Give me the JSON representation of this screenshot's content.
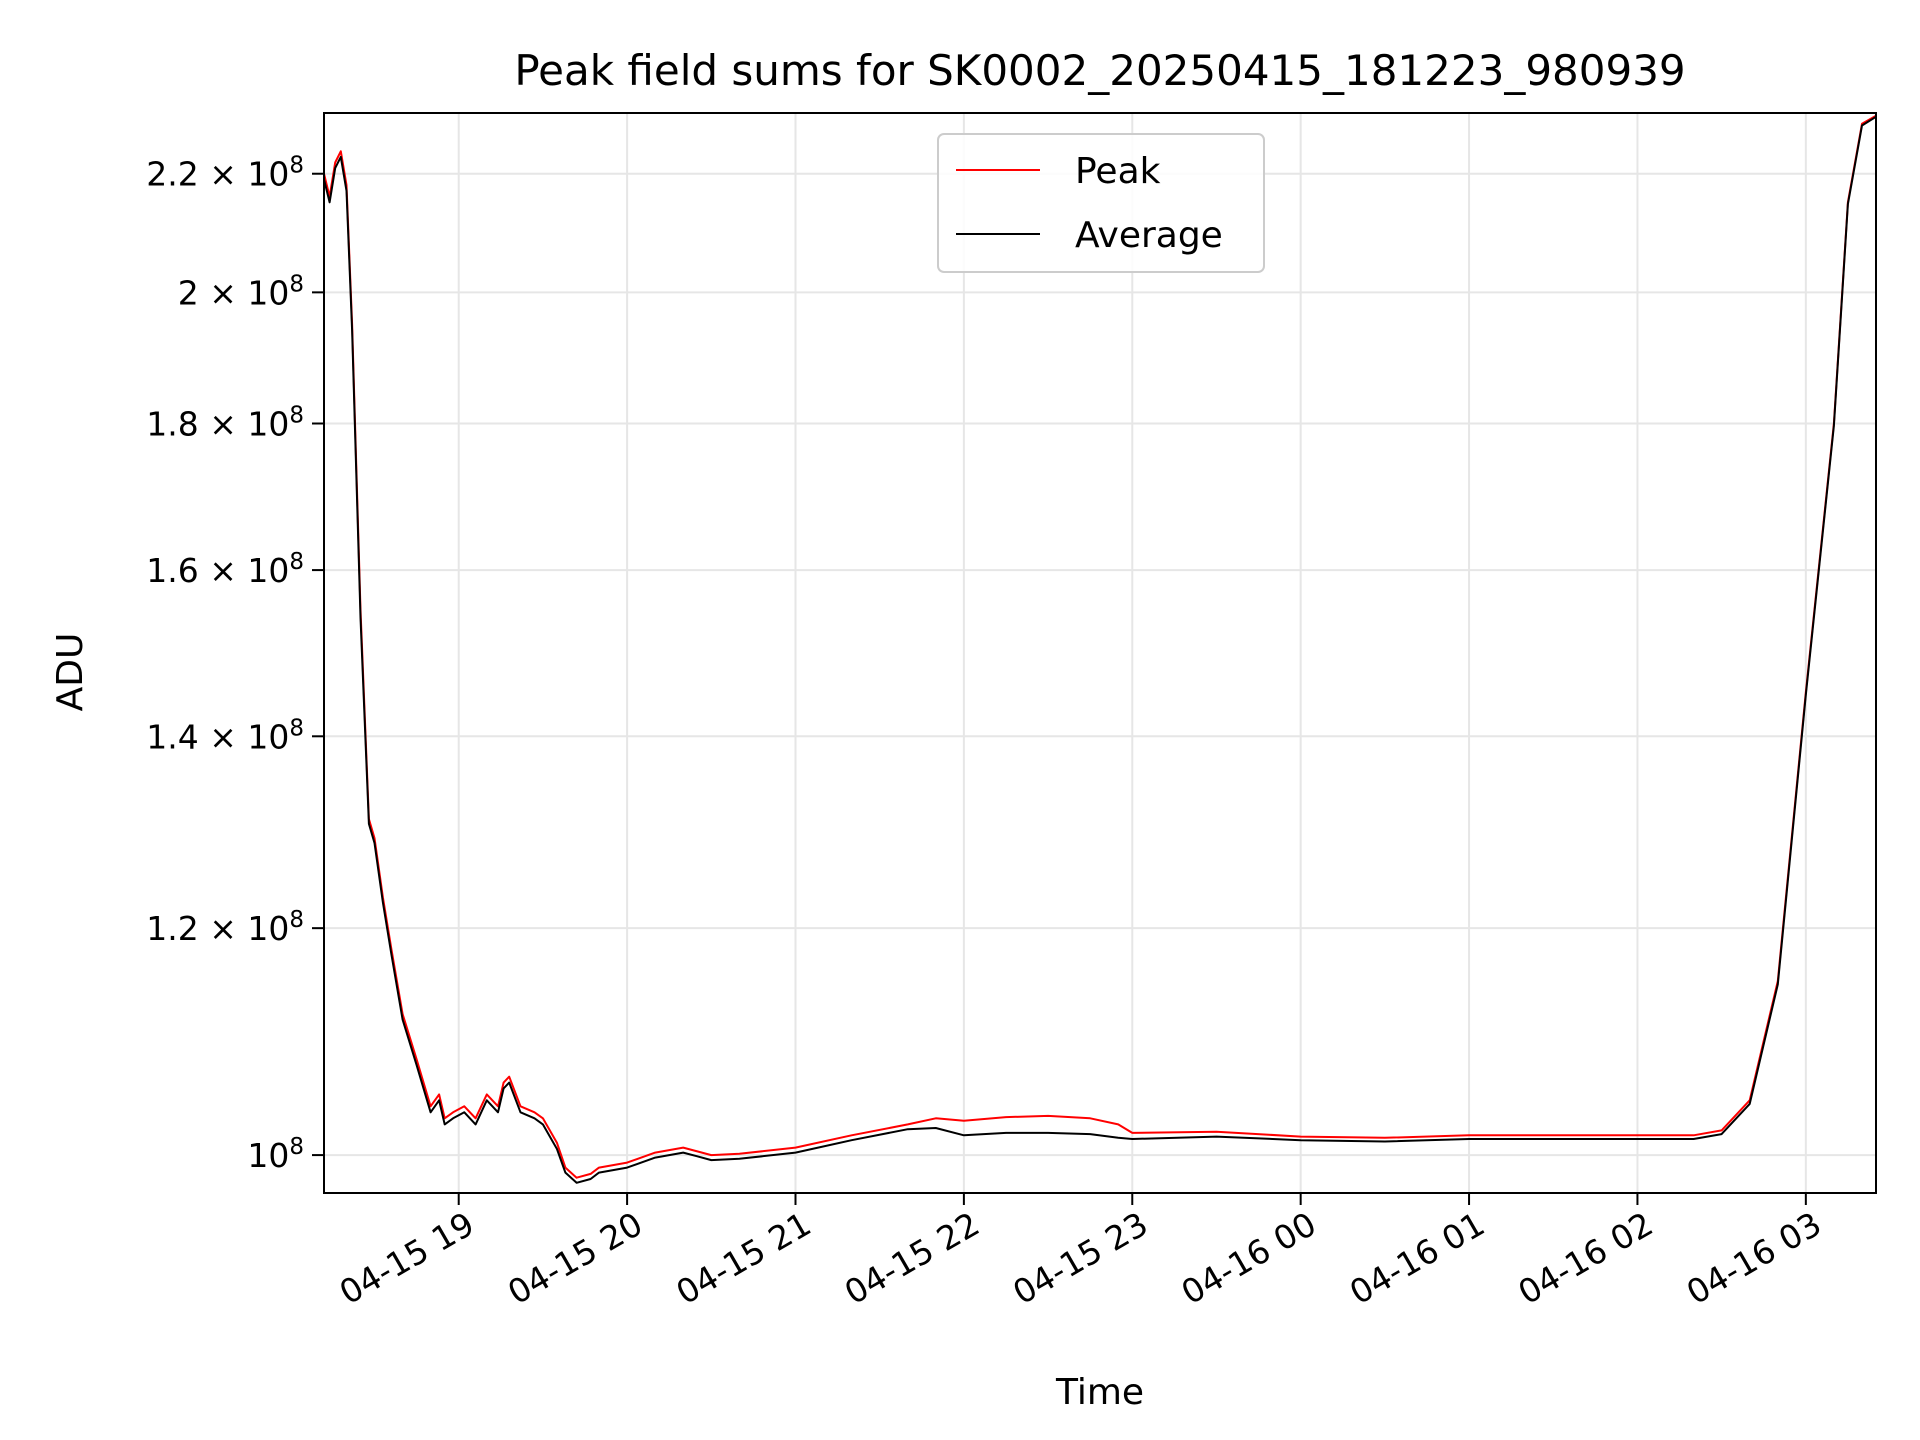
{
  "chart_data": {
    "type": "line",
    "title": "Peak field sums for SK0002_20250415_181223_980939",
    "xlabel": "Time",
    "ylabel": "ADU",
    "y_scale": "log",
    "ylim": [
      97000000,
      231000000
    ],
    "xlim": [
      "2025-04-15 18:12",
      "2025-04-16 03:25"
    ],
    "grid": true,
    "legend_position": "upper center",
    "x_ticks": [
      {
        "value": "2025-04-15 19:00",
        "label": "04-15 19"
      },
      {
        "value": "2025-04-15 20:00",
        "label": "04-15 20"
      },
      {
        "value": "2025-04-15 21:00",
        "label": "04-15 21"
      },
      {
        "value": "2025-04-15 22:00",
        "label": "04-15 22"
      },
      {
        "value": "2025-04-15 23:00",
        "label": "04-15 23"
      },
      {
        "value": "2025-04-16 00:00",
        "label": "04-16 00"
      },
      {
        "value": "2025-04-16 01:00",
        "label": "04-16 01"
      },
      {
        "value": "2025-04-16 02:00",
        "label": "04-16 02"
      },
      {
        "value": "2025-04-16 03:00",
        "label": "04-16 03"
      }
    ],
    "y_ticks": [
      {
        "value": 100000000,
        "mantissa": "",
        "exp": "8"
      },
      {
        "value": 120000000,
        "mantissa": "1.2",
        "exp": "8"
      },
      {
        "value": 140000000,
        "mantissa": "1.4",
        "exp": "8"
      },
      {
        "value": 160000000,
        "mantissa": "1.6",
        "exp": "8"
      },
      {
        "value": 180000000,
        "mantissa": "1.8",
        "exp": "8"
      },
      {
        "value": 200000000,
        "mantissa": "2",
        "exp": "8"
      },
      {
        "value": 220000000,
        "mantissa": "2.2",
        "exp": "8"
      }
    ],
    "series": [
      {
        "name": "Peak",
        "color": "#ff0000",
        "x": [
          "2025-04-15 18:12",
          "2025-04-15 18:14",
          "2025-04-15 18:16",
          "2025-04-15 18:18",
          "2025-04-15 18:20",
          "2025-04-15 18:22",
          "2025-04-15 18:25",
          "2025-04-15 18:28",
          "2025-04-15 18:30",
          "2025-04-15 18:33",
          "2025-04-15 18:36",
          "2025-04-15 18:40",
          "2025-04-15 18:45",
          "2025-04-15 18:50",
          "2025-04-15 18:53",
          "2025-04-15 18:55",
          "2025-04-15 18:58",
          "2025-04-15 19:02",
          "2025-04-15 19:06",
          "2025-04-15 19:10",
          "2025-04-15 19:14",
          "2025-04-15 19:16",
          "2025-04-15 19:18",
          "2025-04-15 19:22",
          "2025-04-15 19:27",
          "2025-04-15 19:30",
          "2025-04-15 19:35",
          "2025-04-15 19:38",
          "2025-04-15 19:42",
          "2025-04-15 19:47",
          "2025-04-15 19:50",
          "2025-04-15 19:55",
          "2025-04-15 20:00",
          "2025-04-15 20:10",
          "2025-04-15 20:20",
          "2025-04-15 20:25",
          "2025-04-15 20:30",
          "2025-04-15 20:40",
          "2025-04-15 21:00",
          "2025-04-15 21:20",
          "2025-04-15 21:40",
          "2025-04-15 21:50",
          "2025-04-15 22:00",
          "2025-04-15 22:15",
          "2025-04-15 22:30",
          "2025-04-15 22:45",
          "2025-04-15 22:55",
          "2025-04-15 23:00",
          "2025-04-15 23:30",
          "2025-04-16 00:00",
          "2025-04-16 00:30",
          "2025-04-16 01:00",
          "2025-04-16 01:30",
          "2025-04-16 02:00",
          "2025-04-16 02:20",
          "2025-04-16 02:30",
          "2025-04-16 02:40",
          "2025-04-16 02:50",
          "2025-04-16 03:00",
          "2025-04-16 03:10",
          "2025-04-16 03:15",
          "2025-04-16 03:20",
          "2025-04-16 03:25"
        ],
        "y": [
          220000000,
          216000000,
          222000000,
          224000000,
          218000000,
          195000000,
          155000000,
          131000000,
          129000000,
          123000000,
          118000000,
          112000000,
          108000000,
          104000000,
          105000000,
          103000000,
          103500000,
          104000000,
          103000000,
          105000000,
          104000000,
          106000000,
          106500000,
          104000000,
          103500000,
          103000000,
          101000000,
          99000000,
          98200000,
          98500000,
          99000000,
          99200000,
          99400000,
          100200000,
          100600000,
          100300000,
          100000000,
          100100000,
          100600000,
          101600000,
          102500000,
          103000000,
          102800000,
          103100000,
          103200000,
          103000000,
          102500000,
          101800000,
          101900000,
          101500000,
          101400000,
          101600000,
          101600000,
          101600000,
          101600000,
          102000000,
          104500000,
          115000000,
          145000000,
          180000000,
          215000000,
          229000000,
          230500000
        ]
      },
      {
        "name": "Average",
        "color": "#000000",
        "x": [
          "2025-04-15 18:12",
          "2025-04-15 18:14",
          "2025-04-15 18:16",
          "2025-04-15 18:18",
          "2025-04-15 18:20",
          "2025-04-15 18:22",
          "2025-04-15 18:25",
          "2025-04-15 18:28",
          "2025-04-15 18:30",
          "2025-04-15 18:33",
          "2025-04-15 18:36",
          "2025-04-15 18:40",
          "2025-04-15 18:45",
          "2025-04-15 18:50",
          "2025-04-15 18:53",
          "2025-04-15 18:55",
          "2025-04-15 18:58",
          "2025-04-15 19:02",
          "2025-04-15 19:06",
          "2025-04-15 19:10",
          "2025-04-15 19:14",
          "2025-04-15 19:16",
          "2025-04-15 19:18",
          "2025-04-15 19:22",
          "2025-04-15 19:27",
          "2025-04-15 19:30",
          "2025-04-15 19:35",
          "2025-04-15 19:38",
          "2025-04-15 19:42",
          "2025-04-15 19:47",
          "2025-04-15 19:50",
          "2025-04-15 19:55",
          "2025-04-15 20:00",
          "2025-04-15 20:10",
          "2025-04-15 20:20",
          "2025-04-15 20:25",
          "2025-04-15 20:30",
          "2025-04-15 20:40",
          "2025-04-15 21:00",
          "2025-04-15 21:20",
          "2025-04-15 21:40",
          "2025-04-15 21:50",
          "2025-04-15 22:00",
          "2025-04-15 22:15",
          "2025-04-15 22:30",
          "2025-04-15 22:45",
          "2025-04-15 22:55",
          "2025-04-15 23:00",
          "2025-04-15 23:30",
          "2025-04-16 00:00",
          "2025-04-16 00:30",
          "2025-04-16 01:00",
          "2025-04-16 01:30",
          "2025-04-16 02:00",
          "2025-04-16 02:20",
          "2025-04-16 02:30",
          "2025-04-16 02:40",
          "2025-04-16 02:50",
          "2025-04-16 03:00",
          "2025-04-16 03:10",
          "2025-04-16 03:15",
          "2025-04-16 03:20",
          "2025-04-16 03:25"
        ],
        "y": [
          219000000,
          215000000,
          221000000,
          223000000,
          217000000,
          194000000,
          154000000,
          130500000,
          128500000,
          122500000,
          117500000,
          111500000,
          107500000,
          103500000,
          104500000,
          102500000,
          103000000,
          103500000,
          102500000,
          104500000,
          103500000,
          105500000,
          106000000,
          103500000,
          103000000,
          102500000,
          100500000,
          98600000,
          97800000,
          98100000,
          98600000,
          98800000,
          99000000,
          99800000,
          100200000,
          99900000,
          99600000,
          99700000,
          100200000,
          101200000,
          102100000,
          102200000,
          101600000,
          101800000,
          101800000,
          101700000,
          101400000,
          101300000,
          101500000,
          101200000,
          101100000,
          101300000,
          101300000,
          101300000,
          101300000,
          101700000,
          104200000,
          114700000,
          144700000,
          179700000,
          214700000,
          228700000,
          230300000
        ]
      }
    ]
  }
}
